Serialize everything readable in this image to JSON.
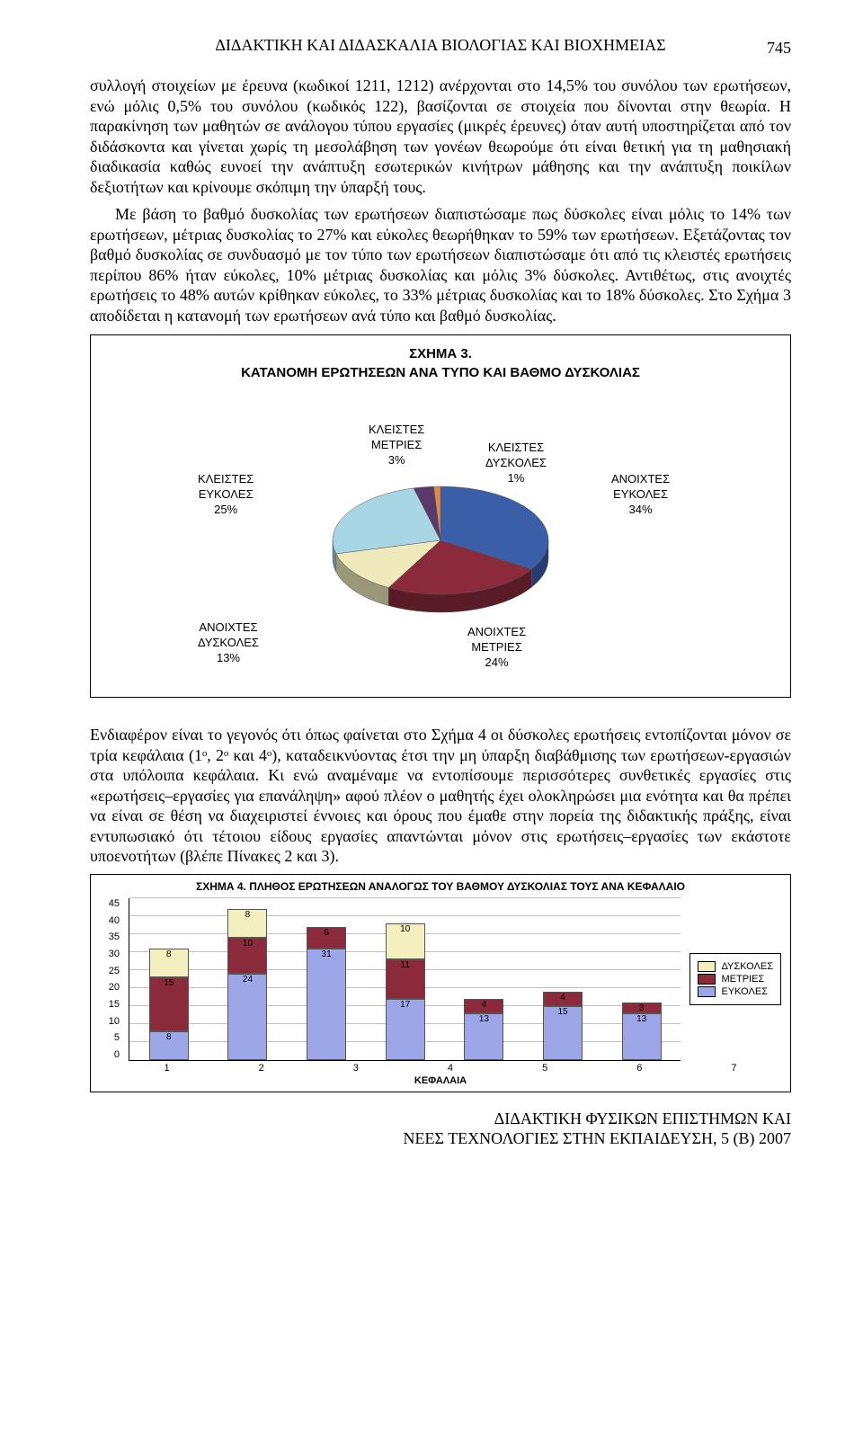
{
  "running_head": "ΔΙΔΑΚΤΙΚΗ ΚΑΙ ΔΙΔΑΣΚΑΛΙΑ ΒΙΟΛΟΓΙΑΣ ΚΑΙ ΒΙΟΧΗΜΕΙΑΣ",
  "page_number": "745",
  "para1": "συλλογή στοιχείων με έρευνα (κωδικοί 1211, 1212) ανέρχονται στο 14,5% του συνόλου των ερωτήσεων, ενώ μόλις 0,5% του συνόλου (κωδικός 122), βασίζονται σε στοιχεία που δίνονται στην θεωρία. Η παρακίνηση των μαθητών σε ανάλογου τύπου εργασίες (μικρές έρευνες) όταν αυτή υποστηρίζεται από τον διδάσκοντα και γίνεται χωρίς τη μεσολάβηση των γονέων θεωρούμε ότι είναι θετική για τη μαθησιακή διαδικασία καθώς ευνοεί την ανάπτυξη εσωτερικών κινήτρων μάθησης και την ανάπτυξη ποικίλων δεξιοτήτων και κρίνουμε σκόπιμη την ύπαρξή τους.",
  "para2": "Με βάση το βαθμό δυσκολίας των ερωτήσεων διαπιστώσαμε πως δύσκολες είναι μόλις το 14% των ερωτήσεων, μέτριας δυσκολίας το 27% και εύκολες θεωρήθηκαν το 59% των ερωτήσεων. Εξετάζοντας τον βαθμό δυσκολίας σε συνδυασμό με τον τύπο των ερωτήσεων διαπιστώσαμε ότι από τις κλειστές ερωτήσεις περίπου 86% ήταν εύκολες, 10% μέτριας δυσκολίας και μόλις 3% δύσκολες. Αντιθέτως, στις ανοιχτές ερωτήσεις το 48% αυτών κρίθηκαν εύκολες, το 33% μέτριας δυσκολίας και το 18% δύσκολες. Στο Σχήμα 3 αποδίδεται η κατανομή των ερωτήσεων ανά τύπο και βαθμό δυσκολίας.",
  "chart3": {
    "type": "pie",
    "title_line1": "ΣΧΗΜΑ 3.",
    "title_line2": "ΚΑΤΑΝΟΜΗ ΕΡΩΤΗΣΕΩΝ ΑΝΑ ΤΥΠΟ ΚΑΙ ΒΑΘΜΟ ΔΥΣΚΟΛΙΑΣ",
    "slices": [
      {
        "label_l1": "ΑΝΟΙΧΤΕΣ",
        "label_l2": "ΕΥΚΟΛΕΣ",
        "pct": "34%",
        "value": 34,
        "color": "#3b5ea8"
      },
      {
        "label_l1": "ΑΝΟΙΧΤΕΣ",
        "label_l2": "ΜΕΤΡΙΕΣ",
        "pct": "24%",
        "value": 24,
        "color": "#8a2a3a"
      },
      {
        "label_l1": "ΑΝΟΙΧΤΕΣ",
        "label_l2": "ΔΥΣΚΟΛΕΣ",
        "pct": "13%",
        "value": 13,
        "color": "#efe9bb"
      },
      {
        "label_l1": "ΚΛΕΙΣΤΕΣ",
        "label_l2": "ΕΥΚΟΛΕΣ",
        "pct": "25%",
        "value": 25,
        "color": "#a8d6e4"
      },
      {
        "label_l1": "ΚΛΕΙΣΤΕΣ",
        "label_l2": "ΜΕΤΡΙΕΣ",
        "pct": "3%",
        "value": 3,
        "color": "#5a3a6a"
      },
      {
        "label_l1": "ΚΛΕΙΣΤΕΣ",
        "label_l2": "ΔΥΣΚΟΛΕΣ",
        "pct": "1%",
        "value": 1,
        "color": "#e08a4a"
      }
    ],
    "depth_color_darken": 0.65,
    "background_color": "#ffffff"
  },
  "para3": "Ενδιαφέρον είναι το γεγονός ότι όπως φαίνεται στο Σχήμα 4 οι δύσκολες ερωτήσεις εντοπίζονται μόνον σε τρία κεφάλαια (1ᵒ, 2ᵒ και 4ᵒ), καταδεικνύοντας έτσι την μη ύπαρξη διαβάθμισης των ερωτήσεων-εργασιών στα υπόλοιπα κεφάλαια. Κι ενώ αναμέναμε να εντοπίσουμε περισσότερες συνθετικές εργασίες στις «ερωτήσεις–εργασίες για επανάληψη» αφού πλέον ο μαθητής έχει ολοκληρώσει μια ενότητα και θα πρέπει να είναι σε θέση να διαχειριστεί έννοιες και όρους που έμαθε στην πορεία της διδακτικής πράξης, είναι εντυπωσιακό ότι τέτοιου είδους εργασίες απαντώνται μόνον στις ερωτήσεις–εργασίες των εκάστοτε υποενοτήτων (βλέπε Πίνακες 2 και 3).",
  "chart4": {
    "type": "stacked_bar",
    "title": "ΣΧΗΜΑ 4. ΠΛΗΘΟΣ ΕΡΩΤΗΣΕΩΝ ΑΝΑΛΟΓΩΣ ΤΟΥ ΒΑΘΜΟΥ ΔΥΣΚΟΛΙΑΣ ΤΟΥΣ ΑΝΑ ΚΕΦΑΛΑΙΟ",
    "ymax": 45,
    "ytick_step": 5,
    "yticks": [
      "0",
      "5",
      "10",
      "15",
      "20",
      "25",
      "30",
      "35",
      "40",
      "45"
    ],
    "categories": [
      "1",
      "2",
      "3",
      "4",
      "5",
      "6",
      "7"
    ],
    "xlabel": "ΚΕΦΑΛΑΙΑ",
    "series": {
      "easy": {
        "label": "ΕΥΚΟΛΕΣ",
        "color": "#9da7e8"
      },
      "medium": {
        "label": "ΜΕΤΡΙΕΣ",
        "color": "#8a2a3a"
      },
      "hard": {
        "label": "ΔΥΣΚΟΛΕΣ",
        "color": "#f3efbe"
      }
    },
    "legend_order": [
      "hard",
      "medium",
      "easy"
    ],
    "data": [
      {
        "easy": 8,
        "medium": 15,
        "hard": 8
      },
      {
        "easy": 24,
        "medium": 10,
        "hard": 8
      },
      {
        "easy": 31,
        "medium": 6,
        "hard": 0
      },
      {
        "easy": 17,
        "medium": 11,
        "hard": 10
      },
      {
        "easy": 13,
        "medium": 4,
        "hard": 0
      },
      {
        "easy": 15,
        "medium": 4,
        "hard": 0
      },
      {
        "easy": 13,
        "medium": 3,
        "hard": 0
      }
    ],
    "grid_color": "#c0c0c0",
    "background_color": "#ffffff"
  },
  "footer_line1": "ΔΙΔΑΚΤΙΚΗ ΦΥΣΙΚΩΝ ΕΠΙΣΤΗΜΩΝ ΚΑΙ",
  "footer_line2": "ΝΕΕΣ ΤΕΧΝΟΛΟΓΙΕΣ ΣΤΗΝ ΕΚΠΑΙΔΕΥΣΗ, 5 (Β) 2007"
}
